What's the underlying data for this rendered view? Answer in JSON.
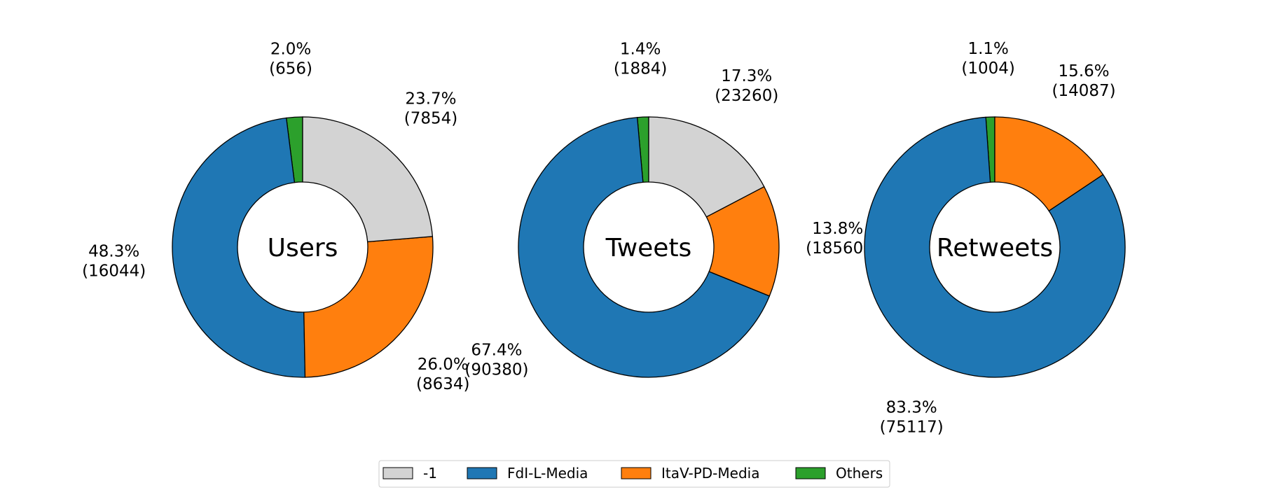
{
  "chart_data": {
    "type": "pie",
    "legend": {
      "placement": "bottom-center",
      "entries": [
        {
          "label": "-1",
          "color": "#d3d3d3"
        },
        {
          "label": "FdI-L-Media",
          "color": "#1f77b4"
        },
        {
          "label": "ItaV-PD-Media",
          "color": "#ff7f0e"
        },
        {
          "label": "Others",
          "color": "#2ca02c"
        }
      ]
    },
    "charts": [
      {
        "title": "Users",
        "slices": [
          {
            "category": "Others",
            "percent": 2.0,
            "count": 656,
            "label_pct": "2.0%",
            "label_count": "(656)"
          },
          {
            "category": "FdI-L-Media",
            "percent": 48.3,
            "count": 16044,
            "label_pct": "48.3%",
            "label_count": "(16044)"
          },
          {
            "category": "ItaV-PD-Media",
            "percent": 26.0,
            "count": 8634,
            "label_pct": "26.0%",
            "label_count": "(8634)"
          },
          {
            "category": "-1",
            "percent": 23.7,
            "count": 7854,
            "label_pct": "23.7%",
            "label_count": "(7854)"
          }
        ]
      },
      {
        "title": "Tweets",
        "slices": [
          {
            "category": "Others",
            "percent": 1.4,
            "count": 1884,
            "label_pct": "1.4%",
            "label_count": "(1884)"
          },
          {
            "category": "FdI-L-Media",
            "percent": 67.4,
            "count": 90380,
            "label_pct": "67.4%",
            "label_count": "(90380)"
          },
          {
            "category": "ItaV-PD-Media",
            "percent": 13.8,
            "count": 18560,
            "label_pct": "13.8%",
            "label_count": "(18560)"
          },
          {
            "category": "-1",
            "percent": 17.3,
            "count": 23260,
            "label_pct": "17.3%",
            "label_count": "(23260)"
          }
        ]
      },
      {
        "title": "Retweets",
        "slices": [
          {
            "category": "Others",
            "percent": 1.1,
            "count": 1004,
            "label_pct": "1.1%",
            "label_count": "(1004)"
          },
          {
            "category": "FdI-L-Media",
            "percent": 83.3,
            "count": 75117,
            "label_pct": "83.3%",
            "label_count": "(75117)"
          },
          {
            "category": "ItaV-PD-Media",
            "percent": 15.6,
            "count": 14087,
            "label_pct": "15.6%",
            "label_count": "(14087)"
          }
        ]
      }
    ]
  }
}
